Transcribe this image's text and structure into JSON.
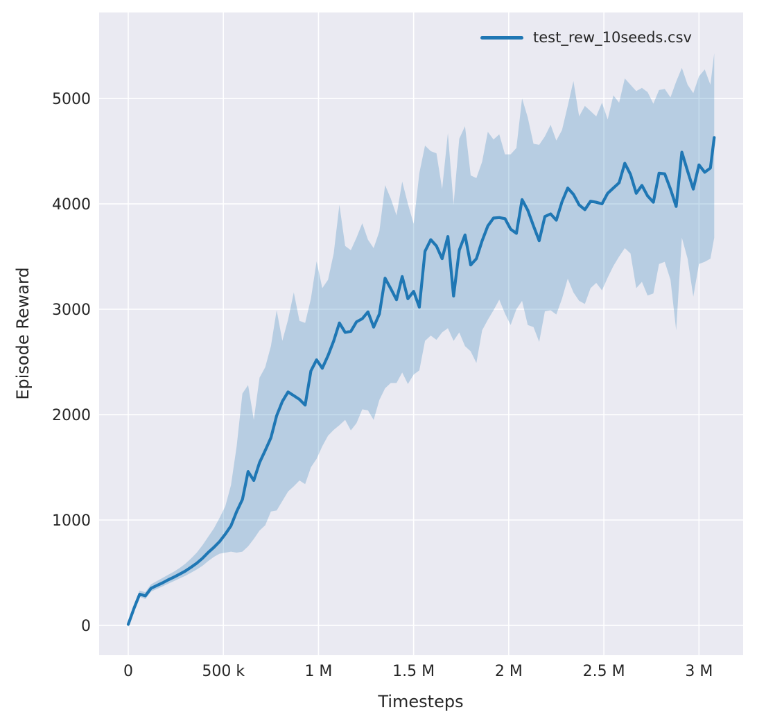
{
  "figure": {
    "background": "#ffffff",
    "axes_background": "#eaeaf2",
    "grid_color": "#ffffff",
    "text_color": "#262626"
  },
  "legend": {
    "label": "test_rew_10seeds.csv",
    "line_color": "#1f77b4"
  },
  "chart_data": {
    "type": "line",
    "title": "",
    "xlabel": "Timesteps",
    "ylabel": "Episode Reward",
    "grid": true,
    "legend_position": "upper right",
    "xlim": [
      -153000,
      3232000
    ],
    "ylim": [
      -283,
      5816
    ],
    "x_ticks": [
      0,
      500000,
      1000000,
      1500000,
      2000000,
      2500000,
      3000000
    ],
    "x_tick_labels": [
      "0",
      "500 k",
      "1 M",
      "1.5 M",
      "2 M",
      "2.5 M",
      "3 M"
    ],
    "y_ticks": [
      0,
      1000,
      2000,
      3000,
      4000,
      5000
    ],
    "y_tick_labels": [
      "0",
      "1000",
      "2000",
      "3000",
      "4000",
      "5000"
    ],
    "series": [
      {
        "name": "test_rew_10seeds.csv",
        "color": "#1f77b4",
        "band_opacity": 0.25,
        "line_width": 4.2,
        "x": [
          0,
          30000,
          60000,
          90000,
          120000,
          150000,
          180000,
          210000,
          240000,
          270000,
          300000,
          330000,
          360000,
          390000,
          420000,
          450000,
          480000,
          510000,
          540000,
          570000,
          600000,
          630000,
          660000,
          690000,
          720000,
          750000,
          780000,
          810000,
          840000,
          870000,
          900000,
          930000,
          960000,
          990000,
          1020000,
          1050000,
          1080000,
          1110000,
          1140000,
          1170000,
          1200000,
          1230000,
          1260000,
          1290000,
          1320000,
          1350000,
          1380000,
          1410000,
          1440000,
          1470000,
          1500000,
          1530000,
          1560000,
          1590000,
          1620000,
          1650000,
          1680000,
          1710000,
          1740000,
          1770000,
          1800000,
          1830000,
          1860000,
          1890000,
          1920000,
          1950000,
          1980000,
          2010000,
          2040000,
          2070000,
          2100000,
          2130000,
          2160000,
          2190000,
          2220000,
          2250000,
          2280000,
          2310000,
          2340000,
          2370000,
          2400000,
          2430000,
          2460000,
          2490000,
          2520000,
          2550000,
          2580000,
          2610000,
          2640000,
          2670000,
          2700000,
          2730000,
          2760000,
          2790000,
          2820000,
          2850000,
          2880000,
          2910000,
          2940000,
          2970000,
          3000000,
          3030000,
          3060000,
          3080000
        ],
        "mean": [
          10,
          160,
          296,
          280,
          352,
          378,
          403,
          432,
          458,
          486,
          516,
          552,
          590,
          636,
          692,
          740,
          795,
          866,
          945,
          1080,
          1195,
          1460,
          1375,
          1545,
          1660,
          1780,
          1990,
          2125,
          2215,
          2180,
          2145,
          2090,
          2415,
          2520,
          2440,
          2560,
          2700,
          2870,
          2780,
          2790,
          2880,
          2910,
          2975,
          2830,
          2955,
          3295,
          3195,
          3090,
          3310,
          3100,
          3170,
          3020,
          3550,
          3660,
          3600,
          3480,
          3690,
          3125,
          3560,
          3705,
          3420,
          3480,
          3650,
          3790,
          3865,
          3870,
          3860,
          3760,
          3720,
          4040,
          3940,
          3790,
          3650,
          3880,
          3905,
          3845,
          4020,
          4150,
          4090,
          3990,
          3945,
          4025,
          4015,
          4000,
          4100,
          4150,
          4200,
          4385,
          4280,
          4100,
          4175,
          4075,
          4015,
          4290,
          4285,
          4140,
          3975,
          4490,
          4310,
          4140,
          4370,
          4300,
          4340,
          4630
        ],
        "lo": [
          -20,
          130,
          270,
          250,
          320,
          345,
          370,
          395,
          420,
          445,
          470,
          500,
          530,
          565,
          610,
          650,
          680,
          690,
          700,
          690,
          700,
          750,
          820,
          900,
          950,
          1080,
          1090,
          1180,
          1270,
          1320,
          1375,
          1340,
          1500,
          1580,
          1700,
          1800,
          1855,
          1900,
          1950,
          1850,
          1920,
          2050,
          2040,
          1950,
          2140,
          2250,
          2300,
          2300,
          2400,
          2290,
          2380,
          2420,
          2700,
          2750,
          2710,
          2780,
          2820,
          2700,
          2780,
          2650,
          2600,
          2490,
          2800,
          2900,
          2990,
          3090,
          2960,
          2850,
          3000,
          3080,
          2850,
          2830,
          2690,
          2980,
          2990,
          2950,
          3100,
          3290,
          3160,
          3080,
          3050,
          3200,
          3250,
          3180,
          3300,
          3410,
          3500,
          3580,
          3530,
          3200,
          3260,
          3130,
          3150,
          3430,
          3450,
          3280,
          2800,
          3680,
          3480,
          3120,
          3430,
          3450,
          3480,
          3680
        ],
        "hi": [
          40,
          200,
          330,
          315,
          390,
          420,
          450,
          480,
          510,
          545,
          585,
          635,
          690,
          760,
          840,
          920,
          1020,
          1130,
          1330,
          1700,
          2200,
          2280,
          1950,
          2350,
          2450,
          2650,
          2990,
          2700,
          2900,
          3160,
          2890,
          2870,
          3100,
          3454,
          3200,
          3280,
          3530,
          3990,
          3600,
          3560,
          3680,
          3816,
          3660,
          3580,
          3740,
          4178,
          4050,
          3890,
          4211,
          4000,
          3810,
          4290,
          4553,
          4500,
          4480,
          4140,
          4671,
          3993,
          4618,
          4737,
          4270,
          4244,
          4400,
          4684,
          4610,
          4660,
          4470,
          4470,
          4530,
          5000,
          4820,
          4570,
          4560,
          4640,
          4750,
          4600,
          4700,
          4930,
          5165,
          4830,
          4930,
          4880,
          4830,
          4960,
          4800,
          5030,
          4960,
          5190,
          5130,
          5070,
          5100,
          5060,
          4950,
          5080,
          5090,
          5010,
          5160,
          5290,
          5130,
          5050,
          5210,
          5276,
          5130,
          5430
        ]
      }
    ]
  }
}
